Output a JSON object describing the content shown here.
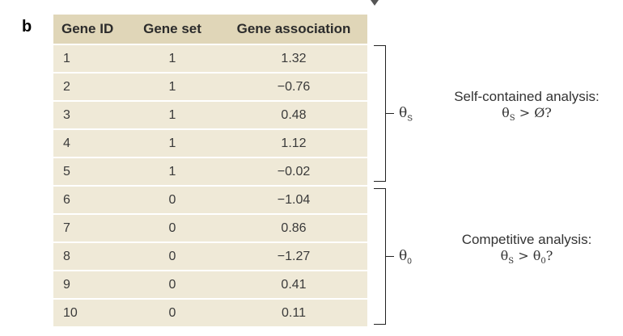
{
  "panel_letter": "b",
  "table": {
    "headers": [
      "Gene ID",
      "Gene set",
      "Gene association"
    ],
    "rows": [
      [
        "1",
        "1",
        "1.32"
      ],
      [
        "2",
        "1",
        "−0.76"
      ],
      [
        "3",
        "1",
        "0.48"
      ],
      [
        "4",
        "1",
        "1.12"
      ],
      [
        "5",
        "1",
        "−0.02"
      ],
      [
        "6",
        "0",
        "−1.04"
      ],
      [
        "7",
        "0",
        "0.86"
      ],
      [
        "8",
        "0",
        "−1.27"
      ],
      [
        "9",
        "0",
        "0.41"
      ],
      [
        "10",
        "0",
        "0.11"
      ]
    ]
  },
  "brackets": [
    {
      "symbol": "θ",
      "subscript": "S"
    },
    {
      "symbol": "θ",
      "subscript": "0"
    }
  ],
  "analyses": [
    {
      "title": "Self-contained analysis:",
      "expr_left": "θ",
      "expr_left_sub": "S",
      "expr_rest": " > Ø?"
    },
    {
      "title": "Competitive analysis:",
      "expr_left": "θ",
      "expr_left_sub": "S",
      "expr_mid": " > θ",
      "expr_mid_sub": "0",
      "expr_end": "?"
    }
  ]
}
